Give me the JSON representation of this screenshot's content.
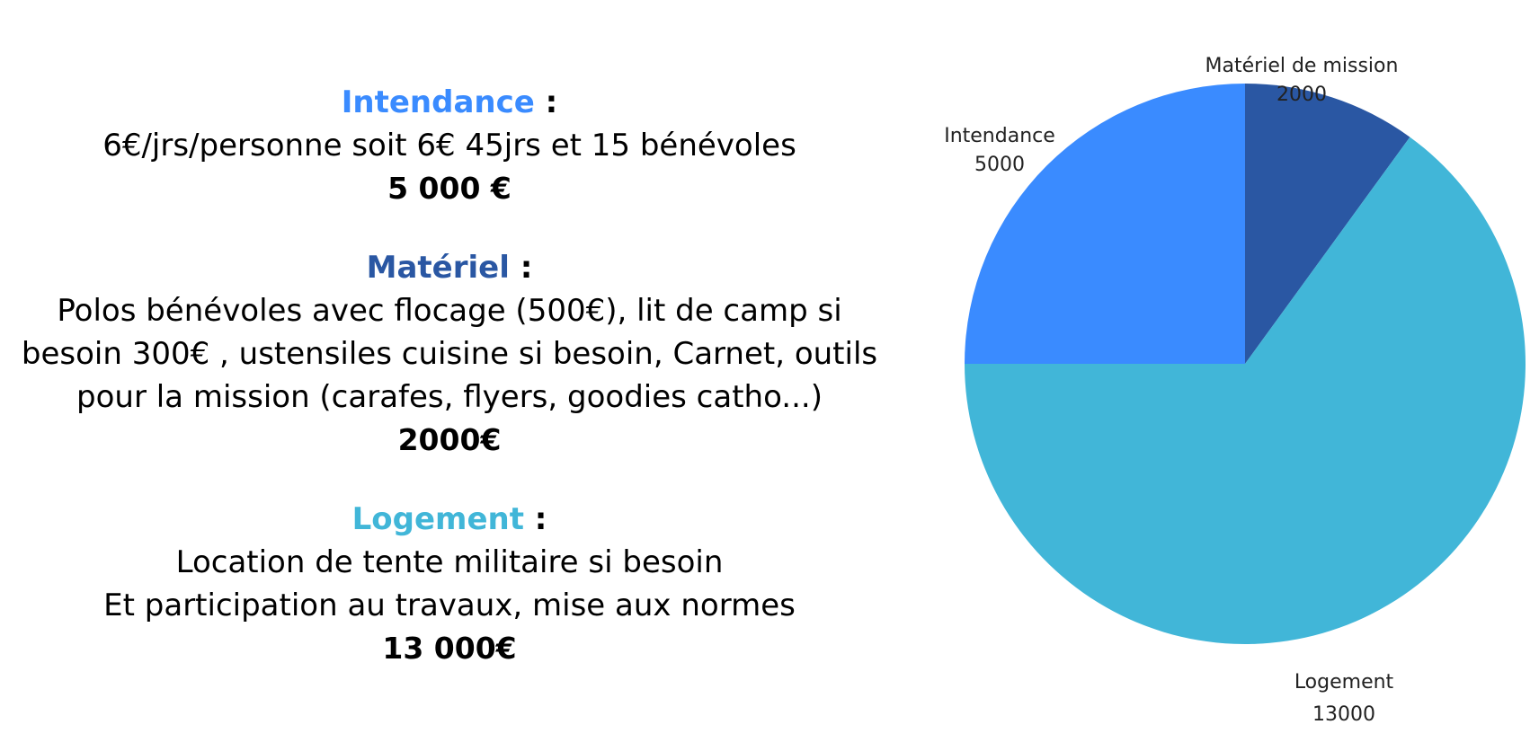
{
  "sections": [
    {
      "title": "Intendance",
      "colon": " :",
      "color": "#3A8BFF",
      "lines": [
        "6€/jrs/personne soit 6€ 45jrs et 15 bénévoles"
      ],
      "amount": "5 000 €"
    },
    {
      "title": "Matériel",
      "colon": " :",
      "color": "#2A57A3",
      "lines": [
        "Polos bénévoles avec flocage (500€), lit de camp si",
        "besoin 300€ , ustensiles cuisine si besoin, Carnet, outils",
        "pour la mission (carafes, flyers, goodies catho...)"
      ],
      "amount": "2000€"
    },
    {
      "title": "Logement",
      "colon": " :",
      "color": "#41B6D8",
      "lines": [
        "Location de tente militaire si besoin",
        "Et participation au travaux, mise aux normes"
      ],
      "amount": "13 000€"
    }
  ],
  "chart_data": {
    "type": "pie",
    "start": "top",
    "direction": "clockwise",
    "slices": [
      {
        "label": "Matériel de mission",
        "value": 2000,
        "value_label": "2000",
        "color": "#2A57A3"
      },
      {
        "label": "Logement",
        "value": 13000,
        "value_label": "13000",
        "color": "#41B6D8"
      },
      {
        "label": "Intendance",
        "value": 5000,
        "value_label": "5000",
        "color": "#3A8BFF"
      }
    ]
  }
}
